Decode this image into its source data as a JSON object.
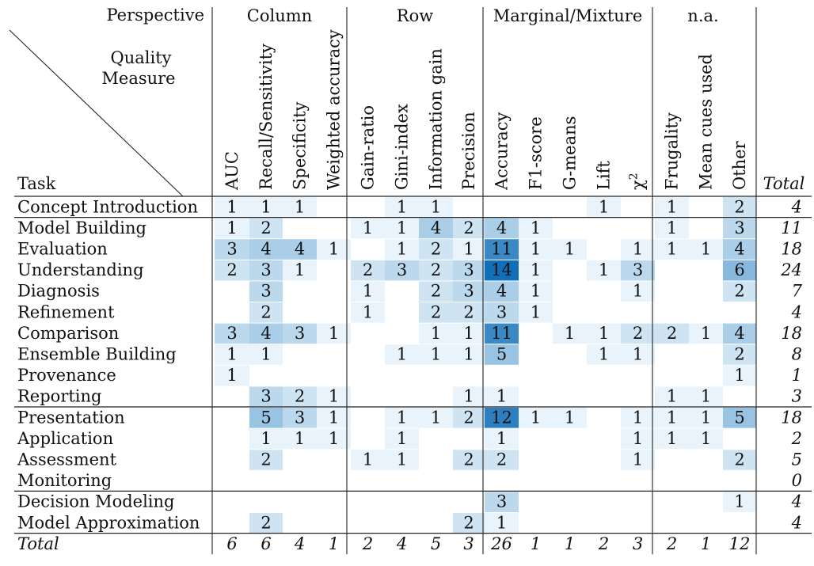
{
  "header": {
    "perspective_label": "Perspective",
    "quality_label_line1": "Quality",
    "quality_label_line2": "Measure",
    "task_label": "Task"
  },
  "groups": [
    {
      "label": "Column"
    },
    {
      "label": "Row"
    },
    {
      "label": "Marginal/Mixture"
    },
    {
      "label": "n.a."
    }
  ],
  "columns": [
    "AUC",
    "Recall/Sensitivity",
    "Specificity",
    "Weighted accuracy",
    "Gain-ratio",
    "Gini-index",
    "Information gain",
    "Precision",
    "Accuracy",
    "F1-score",
    "G-means",
    "Lift",
    "χ²",
    "Frugality",
    "Mean cues used",
    "Other"
  ],
  "total_label": "Total",
  "rows": [
    {
      "task": "Concept Introduction",
      "values": [
        1,
        1,
        1,
        null,
        null,
        1,
        1,
        null,
        null,
        null,
        null,
        1,
        null,
        1,
        null,
        2
      ],
      "total": "4"
    },
    {
      "task": "Model Building",
      "values": [
        1,
        2,
        null,
        null,
        1,
        1,
        4,
        2,
        4,
        1,
        null,
        null,
        null,
        1,
        null,
        3
      ],
      "total": "11"
    },
    {
      "task": "Evaluation",
      "values": [
        3,
        4,
        4,
        1,
        null,
        1,
        2,
        1,
        11,
        1,
        1,
        null,
        1,
        1,
        1,
        4
      ],
      "total": "18"
    },
    {
      "task": "Understanding",
      "values": [
        2,
        3,
        1,
        null,
        2,
        3,
        2,
        3,
        14,
        1,
        null,
        1,
        3,
        null,
        null,
        6
      ],
      "total": "24"
    },
    {
      "task": "Diagnosis",
      "values": [
        null,
        3,
        null,
        null,
        1,
        null,
        2,
        3,
        4,
        1,
        null,
        null,
        1,
        null,
        null,
        2
      ],
      "total": "7"
    },
    {
      "task": "Refinement",
      "values": [
        null,
        2,
        null,
        null,
        1,
        null,
        2,
        2,
        3,
        1,
        null,
        null,
        null,
        null,
        null,
        null
      ],
      "total": "4"
    },
    {
      "task": "Comparison",
      "values": [
        3,
        4,
        3,
        1,
        null,
        null,
        1,
        1,
        11,
        null,
        1,
        1,
        2,
        2,
        1,
        4
      ],
      "total": "18"
    },
    {
      "task": "Ensemble Building",
      "values": [
        1,
        1,
        null,
        null,
        null,
        1,
        1,
        1,
        5,
        null,
        null,
        1,
        1,
        null,
        null,
        2
      ],
      "total": "8"
    },
    {
      "task": "Provenance",
      "values": [
        1,
        null,
        null,
        null,
        null,
        null,
        null,
        null,
        null,
        null,
        null,
        null,
        null,
        null,
        null,
        1
      ],
      "total": "1"
    },
    {
      "task": "Reporting",
      "values": [
        null,
        3,
        2,
        1,
        null,
        null,
        null,
        1,
        1,
        null,
        null,
        null,
        null,
        1,
        1,
        null
      ],
      "total": "3"
    },
    {
      "task": "Presentation",
      "values": [
        null,
        5,
        3,
        1,
        null,
        1,
        1,
        2,
        12,
        1,
        1,
        null,
        1,
        1,
        1,
        5
      ],
      "total": "18"
    },
    {
      "task": "Application",
      "values": [
        null,
        1,
        1,
        1,
        null,
        1,
        null,
        null,
        1,
        null,
        null,
        null,
        1,
        1,
        1,
        null
      ],
      "total": "2"
    },
    {
      "task": "Assessment",
      "values": [
        null,
        2,
        null,
        null,
        1,
        1,
        null,
        2,
        2,
        null,
        null,
        null,
        1,
        null,
        null,
        2
      ],
      "total": "5"
    },
    {
      "task": "Monitoring",
      "values": [
        null,
        null,
        null,
        null,
        null,
        null,
        null,
        null,
        null,
        null,
        null,
        null,
        null,
        null,
        null,
        null
      ],
      "total": "0"
    },
    {
      "task": "Decision Modeling",
      "values": [
        null,
        null,
        null,
        null,
        null,
        null,
        null,
        null,
        3,
        null,
        null,
        null,
        null,
        null,
        null,
        1
      ],
      "total": "4"
    },
    {
      "task": "Model Approximation",
      "values": [
        null,
        2,
        null,
        null,
        null,
        null,
        null,
        2,
        1,
        null,
        null,
        null,
        null,
        null,
        null,
        null
      ],
      "total": "4"
    }
  ],
  "totals_row": {
    "label": "Total",
    "values": [
      "6",
      "6",
      "4",
      "1",
      "2",
      "4",
      "5",
      "3",
      "26",
      "1",
      "1",
      "2",
      "3",
      "2",
      "1",
      "12"
    ]
  },
  "colors": {
    "scale_light": "#e8f3fb",
    "scale_dark": "#0f6fb8",
    "line": "#222222"
  }
}
